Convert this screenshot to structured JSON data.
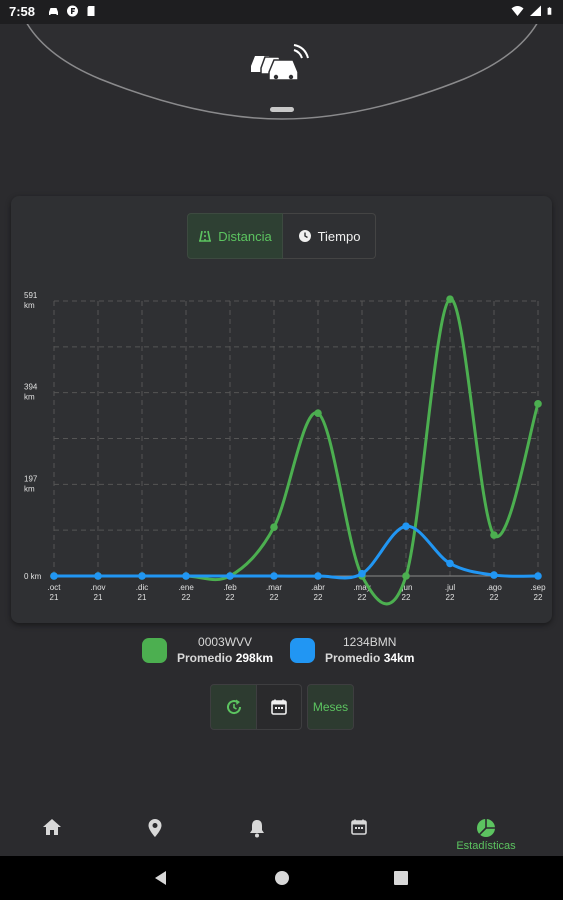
{
  "status_bar": {
    "time": "7:58",
    "icons_left": [
      "car-icon",
      "f-badge-icon",
      "sd-card-icon"
    ],
    "icons_right": [
      "wifi-icon",
      "signal-icon",
      "battery-icon"
    ]
  },
  "header": {
    "logo_icon": "cars-connected-icon"
  },
  "tabs": [
    {
      "label": "Distancia",
      "icon": "road-icon",
      "selected": true
    },
    {
      "label": "Tiempo",
      "icon": "clock-icon",
      "selected": false
    }
  ],
  "chart_data": {
    "type": "line",
    "categories": [
      ".oct\n21",
      ".nov\n21",
      ".dic\n21",
      ".ene\n22",
      ".feb\n22",
      ".mar\n22",
      ".abr\n22",
      ".may\n22",
      ".jun\n22",
      ".jul\n22",
      ".ago\n22",
      ".sep\n22"
    ],
    "yticks": [
      "0 km",
      "197\nkm",
      "394\nkm",
      "591\nkm"
    ],
    "ylim": [
      0,
      591
    ],
    "grid": true,
    "series": [
      {
        "name": "0003WVV",
        "color": "#4caf50",
        "values": [
          0,
          0,
          0,
          0,
          0,
          105,
          350,
          0,
          0,
          595,
          88,
          370
        ]
      },
      {
        "name": "1234BMN",
        "color": "#2196f3",
        "values": [
          0,
          0,
          0,
          0,
          0,
          0,
          0,
          5,
          107,
          27,
          2,
          0
        ]
      }
    ]
  },
  "legend": [
    {
      "plate": "0003WVV",
      "avg_label": "Promedio",
      "avg_value": "298km",
      "color": "#4caf50"
    },
    {
      "plate": "1234BMN",
      "avg_label": "Promedio",
      "avg_value": "34km",
      "color": "#2196f3"
    }
  ],
  "controls": {
    "refresh_icon": "refresh-icon",
    "calendar_icon": "calendar-icon",
    "months_label": "Meses"
  },
  "bottom_nav": [
    {
      "icon": "home-icon",
      "label": "",
      "active": false
    },
    {
      "icon": "location-pin-icon",
      "label": "",
      "active": false
    },
    {
      "icon": "bell-icon",
      "label": "",
      "active": false
    },
    {
      "icon": "calendar-icon",
      "label": "",
      "active": false
    },
    {
      "icon": "pie-chart-icon",
      "label": "Estadísticas",
      "active": true
    }
  ],
  "system_nav": [
    "back-icon",
    "home-circle-icon",
    "recents-icon"
  ]
}
